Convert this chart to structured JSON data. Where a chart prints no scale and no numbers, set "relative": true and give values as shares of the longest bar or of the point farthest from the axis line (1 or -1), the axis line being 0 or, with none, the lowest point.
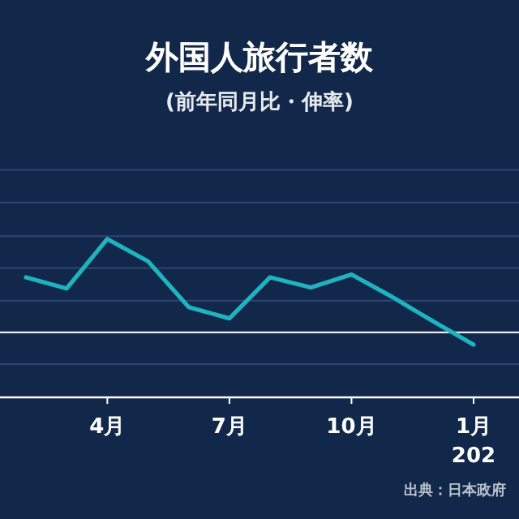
{
  "chart_data": {
    "type": "line",
    "title": "外国人旅行者数",
    "subtitle": "(前年同月比・伸率)",
    "relative": true,
    "tick_labels": "x",
    "ref_lines": [
      {
        "axis": "y",
        "value": 1.74,
        "color": "#2e4670"
      },
      {
        "axis": "y",
        "value": 1.39,
        "color": "#2e4670"
      },
      {
        "axis": "y",
        "value": 1.03,
        "color": "#2e4670"
      },
      {
        "axis": "y",
        "value": 0.69,
        "color": "#2e4670"
      },
      {
        "axis": "y",
        "value": 0.34,
        "color": "#2e4670"
      },
      {
        "axis": "y",
        "value": -0.34,
        "color": "#2e4670"
      }
    ],
    "categories": [
      null,
      null,
      "4月",
      null,
      null,
      "7月",
      null,
      null,
      "10月",
      null,
      null,
      "1月"
    ],
    "series": [
      {
        "color": "#1fb3bf",
        "values": [
          0.59,
          0.47,
          1,
          0.76,
          0.27,
          0.15,
          0.59,
          0.48,
          0.62,
          0.38,
          0.12,
          -0.13
        ]
      }
    ],
    "annotations": [
      "202",
      "出典：日本政府"
    ]
  }
}
